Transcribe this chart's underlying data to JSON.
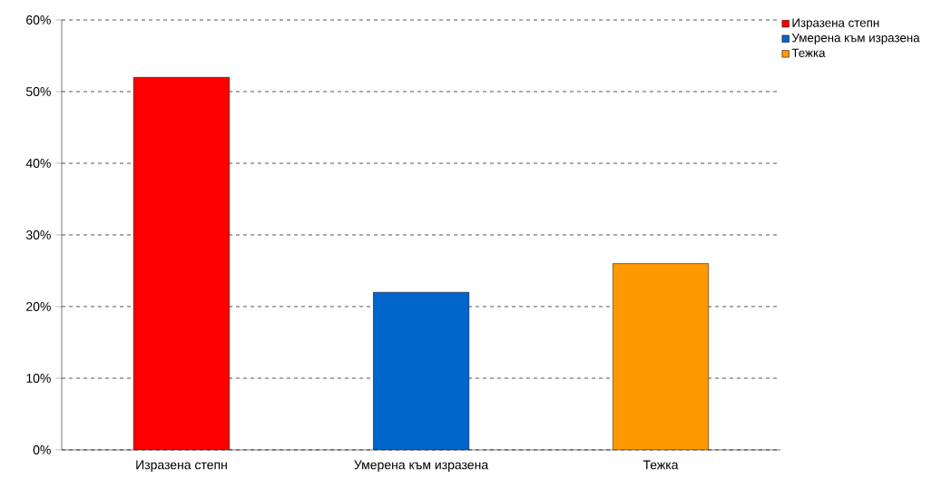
{
  "chart_data": {
    "type": "bar",
    "categories": [
      "Изразена степн",
      "Умерена към изразена",
      "Тежка"
    ],
    "series": [
      {
        "name": "Изразена степн",
        "color": "#ff0000",
        "values": [
          52,
          null,
          null
        ]
      },
      {
        "name": "Умерена към изразена",
        "color": "#0066cc",
        "values": [
          null,
          22,
          null
        ]
      },
      {
        "name": "Тежка",
        "color": "#ff9900",
        "values": [
          null,
          null,
          26
        ]
      }
    ],
    "ylim": [
      0,
      60
    ],
    "yticks": [
      {
        "value": 0,
        "label": "0%"
      },
      {
        "value": 10,
        "label": "10%"
      },
      {
        "value": 20,
        "label": "20%"
      },
      {
        "value": 30,
        "label": "30%"
      },
      {
        "value": 40,
        "label": "40%"
      },
      {
        "value": 50,
        "label": "50%"
      },
      {
        "value": 60,
        "label": "60%"
      }
    ],
    "grid": "y",
    "legend": "top right"
  }
}
